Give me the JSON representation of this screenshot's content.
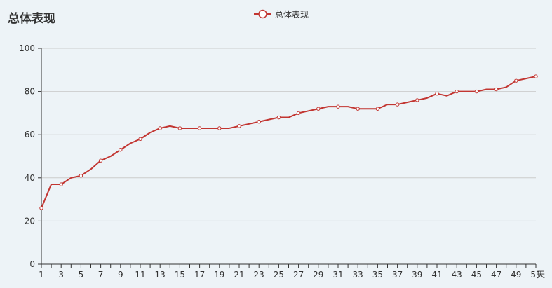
{
  "chart_data": {
    "type": "line",
    "title": "总体表现",
    "xlabel": "天",
    "ylabel": "",
    "xlim": [
      1,
      51
    ],
    "ylim": [
      0,
      100
    ],
    "yticks": [
      0,
      20,
      40,
      60,
      80,
      100
    ],
    "xticks": [
      1,
      3,
      5,
      7,
      9,
      11,
      13,
      15,
      17,
      19,
      21,
      23,
      25,
      27,
      29,
      31,
      33,
      35,
      37,
      39,
      41,
      43,
      45,
      47,
      49,
      51
    ],
    "grid": true,
    "legend_position": "top-center",
    "x": [
      1,
      2,
      3,
      4,
      5,
      6,
      7,
      8,
      9,
      10,
      11,
      12,
      13,
      14,
      15,
      16,
      17,
      18,
      19,
      20,
      21,
      22,
      23,
      24,
      25,
      26,
      27,
      28,
      29,
      30,
      31,
      32,
      33,
      34,
      35,
      36,
      37,
      38,
      39,
      40,
      41,
      42,
      43,
      44,
      45,
      46,
      47,
      48,
      49,
      50,
      51
    ],
    "series": [
      {
        "name": "总体表现",
        "color": "#c23531",
        "values": [
          26,
          37,
          37,
          40,
          41,
          44,
          48,
          50,
          53,
          56,
          58,
          61,
          63,
          64,
          63,
          63,
          63,
          63,
          63,
          63,
          64,
          65,
          66,
          67,
          68,
          68,
          70,
          71,
          72,
          73,
          73,
          73,
          72,
          72,
          72,
          74,
          74,
          75,
          76,
          77,
          79,
          78,
          80,
          80,
          80,
          81,
          81,
          82,
          85,
          86,
          87
        ]
      }
    ]
  }
}
